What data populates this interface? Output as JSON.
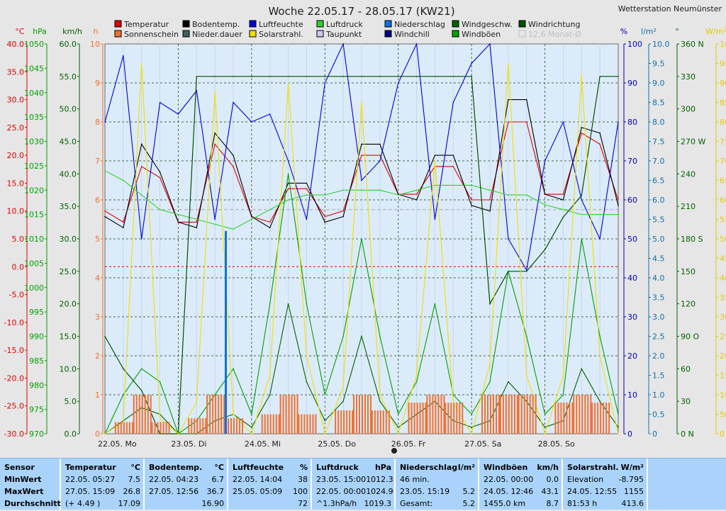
{
  "title": "Woche 22.05.17 - 28.05.17 (KW21)",
  "station": "Wetterstation Neumünster",
  "legend": [
    {
      "label": "Temperatur",
      "color": "#e00000"
    },
    {
      "label": "Sonnenschein",
      "color": "#f07030"
    },
    {
      "label": "Bodentemp.",
      "color": "#000000"
    },
    {
      "label": "Nieder.dauer",
      "color": "#406060"
    },
    {
      "label": "Luftfeuchte",
      "color": "#0000e0"
    },
    {
      "label": "Solarstrahl.",
      "color": "#f0e000"
    },
    {
      "label": "Luftdruck",
      "color": "#30d030"
    },
    {
      "label": "Taupunkt",
      "color": "#c8c8f0"
    },
    {
      "label": "Niederschlag",
      "color": "#1070e0"
    },
    {
      "label": "Windchill",
      "color": "#000080"
    },
    {
      "label": "Windgeschw.",
      "color": "#006000"
    },
    {
      "label": "Windböen",
      "color": "#00a000"
    },
    {
      "label": "Windrichtung",
      "color": "#005000"
    },
    {
      "label": "12,6 Monat-Ø",
      "color": "#b8b8b8"
    }
  ],
  "axes_left": [
    {
      "unit": "°C",
      "color": "#e00000",
      "ticks": [
        "40.0",
        "35.0",
        "30.0",
        "25.0",
        "20.0",
        "15.0",
        "10.0",
        "5.0",
        "0.0",
        "-5.0",
        "-10.0",
        "-15.0",
        "-20.0",
        "-25.0",
        "-30.0"
      ]
    },
    {
      "unit": "hPa",
      "color": "#00a000",
      "ticks": [
        "1050",
        "1045",
        "1040",
        "1035",
        "1030",
        "1025",
        "1020",
        "1015",
        "1010",
        "1005",
        "1000",
        "995",
        "990",
        "985",
        "980",
        "975",
        "970"
      ]
    },
    {
      "unit": "km/h",
      "color": "#006000",
      "ticks": [
        "60.0",
        "55.0",
        "50.0",
        "45.0",
        "40.0",
        "35.0",
        "30.0",
        "25.0",
        "20.0",
        "15.0",
        "10.0",
        "5.0",
        "0.0"
      ]
    },
    {
      "unit": "h",
      "color": "#f07030",
      "ticks": [
        "10",
        "9",
        "8",
        "7",
        "6",
        "5",
        "4",
        "3",
        "2",
        "1",
        "0"
      ]
    }
  ],
  "axes_right": [
    {
      "unit": "%",
      "color": "#0000c0",
      "ticks": [
        "100",
        "90",
        "80",
        "70",
        "60",
        "50",
        "40",
        "30",
        "20",
        "10",
        "0"
      ]
    },
    {
      "unit": "l/m²",
      "color": "#1070b0",
      "ticks": [
        "10.0",
        "9.5",
        "9.0",
        "8.5",
        "8.0",
        "7.5",
        "7.0",
        "6.5",
        "6.0",
        "5.5",
        "5.0",
        "4.5",
        "4.0",
        "3.5",
        "3.0",
        "2.5",
        "2.0",
        "1.5",
        "1.0",
        "0.5",
        "0"
      ]
    },
    {
      "unit": "°",
      "color": "#006000",
      "ticks": [
        "360 N",
        "330",
        "300",
        "270 W",
        "240",
        "210",
        "180 S",
        "150",
        "120",
        "90 O",
        "60",
        "30",
        "0   N"
      ]
    },
    {
      "unit": "W/m²",
      "color": "#e8c800",
      "ticks": [
        "1000",
        "950",
        "900",
        "850",
        "800",
        "750",
        "700",
        "650",
        "600",
        "550",
        "500",
        "450",
        "400",
        "350",
        "300",
        "250",
        "200",
        "150",
        "100",
        "50",
        "0"
      ]
    }
  ],
  "x_labels": [
    "22.05. Mo",
    "23.05. Di",
    "24.05. Mi",
    "25.05. Do",
    "26.05. Fr",
    "27.05. Sa",
    "28.05. So"
  ],
  "chart_data": {
    "type": "line",
    "title": "Woche 22.05.17 - 28.05.17 (KW21)",
    "x": [
      "22.05. 00:00",
      "22.05. 06:00",
      "22.05. 12:00",
      "22.05. 18:00",
      "23.05. 00:00",
      "23.05. 06:00",
      "23.05. 12:00",
      "23.05. 18:00",
      "24.05. 00:00",
      "24.05. 06:00",
      "24.05. 12:00",
      "24.05. 18:00",
      "25.05. 00:00",
      "25.05. 06:00",
      "25.05. 12:00",
      "25.05. 18:00",
      "26.05. 00:00",
      "26.05. 06:00",
      "26.05. 12:00",
      "26.05. 18:00",
      "27.05. 00:00",
      "27.05. 06:00",
      "27.05. 12:00",
      "27.05. 18:00",
      "28.05. 00:00",
      "28.05. 06:00",
      "28.05. 12:00",
      "28.05. 18:00",
      "29.05. 00:00"
    ],
    "series": [
      {
        "name": "Temperatur",
        "unit": "°C",
        "color": "#e00000",
        "values": [
          10,
          8,
          18,
          16,
          8,
          8,
          22,
          18,
          9,
          8,
          14,
          14,
          9,
          10,
          20,
          20,
          13,
          13,
          18,
          18,
          12,
          12,
          26,
          26,
          13,
          13,
          24,
          22,
          12
        ]
      },
      {
        "name": "Bodentemp.",
        "unit": "°C",
        "color": "#000000",
        "values": [
          9,
          7,
          22,
          17,
          8,
          7,
          24,
          20,
          9,
          7,
          15,
          15,
          8,
          9,
          22,
          22,
          13,
          12,
          20,
          20,
          11,
          10,
          30,
          30,
          13,
          12,
          25,
          24,
          11
        ]
      },
      {
        "name": "Luftfeuchte",
        "unit": "%",
        "color": "#0000e0",
        "values": [
          80,
          97,
          50,
          85,
          82,
          88,
          55,
          85,
          80,
          82,
          70,
          55,
          90,
          100,
          65,
          70,
          90,
          100,
          55,
          85,
          95,
          100,
          50,
          42,
          70,
          80,
          60,
          50,
          80
        ]
      },
      {
        "name": "Luftdruck",
        "unit": "hPa",
        "color": "#30d030",
        "values": [
          1024,
          1022,
          1019,
          1016,
          1015,
          1014,
          1013,
          1012,
          1014,
          1016,
          1018,
          1019,
          1019,
          1020,
          1020,
          1020,
          1019,
          1020,
          1021,
          1021,
          1021,
          1020,
          1019,
          1019,
          1017,
          1016,
          1015,
          1015,
          1015
        ]
      },
      {
        "name": "Windgeschw.",
        "unit": "km/h",
        "color": "#006000",
        "values": [
          0,
          2,
          4,
          3,
          0,
          0,
          2,
          3,
          1,
          6,
          20,
          8,
          2,
          5,
          15,
          5,
          1,
          3,
          5,
          2,
          1,
          2,
          8,
          5,
          1,
          2,
          10,
          5,
          1
        ]
      },
      {
        "name": "Windböen",
        "unit": "km/h",
        "color": "#00a000",
        "values": [
          0,
          6,
          10,
          8,
          0,
          2,
          6,
          10,
          3,
          20,
          40,
          20,
          6,
          15,
          30,
          15,
          3,
          8,
          20,
          6,
          3,
          8,
          25,
          15,
          3,
          6,
          30,
          15,
          3
        ]
      },
      {
        "name": "Windrichtung",
        "unit": "°",
        "color": "#005000",
        "values": [
          90,
          60,
          40,
          0,
          0,
          330,
          330,
          330,
          330,
          330,
          330,
          330,
          330,
          330,
          330,
          330,
          330,
          330,
          330,
          330,
          330,
          120,
          150,
          150,
          170,
          200,
          220,
          330,
          330
        ]
      },
      {
        "name": "Solarstrahl.",
        "unit": "W/m²",
        "color": "#f0e000",
        "values": [
          0,
          30,
          950,
          40,
          0,
          80,
          880,
          50,
          0,
          150,
          900,
          200,
          0,
          120,
          850,
          100,
          0,
          150,
          700,
          80,
          0,
          180,
          950,
          150,
          0,
          150,
          920,
          200,
          0
        ]
      },
      {
        "name": "Sonnenschein",
        "unit": "h",
        "color": "#f07030",
        "values": [
          0,
          0.3,
          1,
          0.3,
          0,
          0.4,
          1,
          0.4,
          0,
          0.5,
          1,
          0.5,
          0,
          0.6,
          1,
          0.6,
          0,
          0.8,
          1,
          0.8,
          0,
          1,
          1,
          1,
          0,
          0.8,
          1,
          0.8,
          0
        ]
      },
      {
        "name": "Niederschlag",
        "unit": "l/m²",
        "color": "#1070e0",
        "values": [
          0,
          0,
          0,
          0,
          0,
          0,
          0,
          5.2,
          0,
          0,
          0,
          0,
          0,
          0,
          0,
          0,
          0,
          0,
          0,
          0,
          0,
          0,
          0,
          0,
          0,
          0,
          0,
          0,
          0
        ]
      }
    ],
    "ylim_temperature": [
      -30,
      40
    ],
    "ylim_pressure": [
      970,
      1050
    ],
    "ylim_wind": [
      0,
      60
    ],
    "ylim_humidity": [
      0,
      100
    ],
    "ylim_solar": [
      0,
      1000
    ],
    "grid": true,
    "legend": "top"
  },
  "table": {
    "row_labels": [
      "Sensor",
      "MinWert",
      "MaxWert",
      "Durchschnitt"
    ],
    "columns": [
      {
        "name": "Temperatur",
        "unit": "°C",
        "rows": [
          [
            "22.05.  05:27",
            "7.5"
          ],
          [
            "27.05.  15:09",
            "26.8"
          ],
          [
            "(+ 4.49 )",
            "17.09"
          ]
        ]
      },
      {
        "name": "Bodentemp.",
        "unit": "°C",
        "rows": [
          [
            "22.05.  04:23",
            "6.7"
          ],
          [
            "27.05.  12:56",
            "36.7"
          ],
          [
            "",
            "16.90"
          ]
        ]
      },
      {
        "name": "Luftfeuchte",
        "unit": "%",
        "rows": [
          [
            "22.05.  14:04",
            "38"
          ],
          [
            "25.05.  05:09",
            "100"
          ],
          [
            "",
            "72"
          ]
        ]
      },
      {
        "name": "Luftdruck",
        "unit": "hPa",
        "rows": [
          [
            "23.05.  15:00",
            "1012.3"
          ],
          [
            "22.05.  00:00",
            "1024.9"
          ],
          [
            "^1.3hPa/h",
            "1019.3"
          ]
        ]
      },
      {
        "name": "Niederschlag",
        "unit": "l/m²",
        "rows": [
          [
            "46 min.",
            ""
          ],
          [
            "23.05.  15:19",
            "5.2"
          ],
          [
            "Gesamt:",
            "5.2"
          ]
        ]
      },
      {
        "name": "Windböen",
        "unit": "km/h",
        "rows": [
          [
            "22.05.  00:00",
            "0.0"
          ],
          [
            "24.05.  12:46",
            "43.1"
          ],
          [
            "1455.0 km",
            "8.7"
          ]
        ]
      },
      {
        "name": "Solarstrahl.",
        "unit": "W/m²",
        "rows": [
          [
            "Elevation",
            "-8.795"
          ],
          [
            "24.05.  12:55",
            "1155"
          ],
          [
            "81:53 h",
            "413.6"
          ]
        ]
      }
    ]
  }
}
